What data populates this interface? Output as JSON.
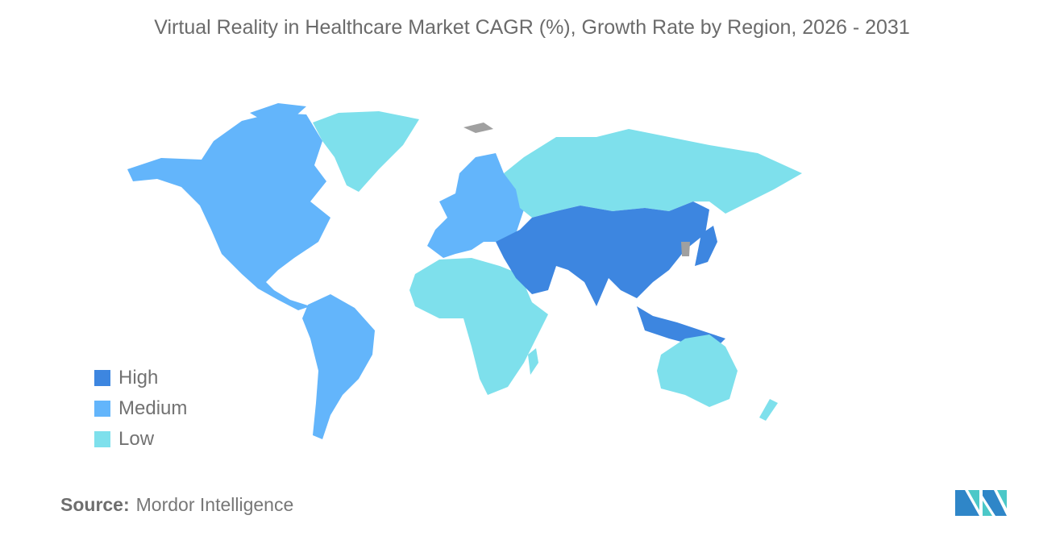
{
  "title": "Virtual Reality in Healthcare Market CAGR (%), Growth Rate by Region, 2026 - 2031",
  "legend": [
    {
      "label": "High",
      "color": "#3d86e0"
    },
    {
      "label": "Medium",
      "color": "#63b5fb"
    },
    {
      "label": "Low",
      "color": "#7ee0ec"
    }
  ],
  "no_data_color": "#a0a0a0",
  "regions": {
    "north_america": "Medium",
    "south_america": "Medium",
    "europe": "Medium",
    "greenland": "Low",
    "russia": "Low",
    "africa": "Low",
    "australia_new_zealand": "Low",
    "middle_east_central_south_east_asia": "High",
    "china_japan_southeast_asia": "High"
  },
  "source": {
    "label": "Source:",
    "value": "Mordor Intelligence"
  },
  "logo": "mordor-intelligence-logo"
}
